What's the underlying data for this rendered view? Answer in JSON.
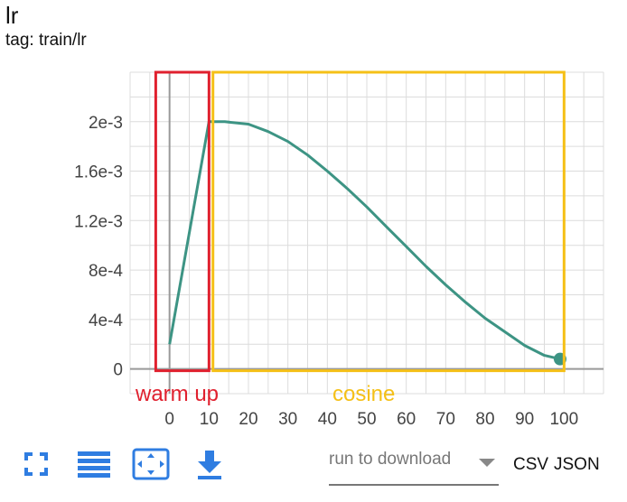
{
  "card": {
    "title": "lr",
    "tag": "tag: train/lr"
  },
  "annotations": {
    "warmup_label": "warm up",
    "warmup_color": "#e0202e",
    "cosine_label": "cosine",
    "cosine_color": "#f5c017"
  },
  "toolbar": {
    "icons": [
      "fullscreen-icon",
      "list-icon",
      "fit-domain-icon",
      "download-icon"
    ],
    "accent": "#2f7de1"
  },
  "download": {
    "placeholder": "run to download",
    "csv_label": "CSV",
    "json_label": "JSON"
  },
  "chart_data": {
    "type": "line",
    "title": "lr",
    "xlabel": "",
    "ylabel": "",
    "xlim": [
      -10,
      110
    ],
    "ylim": [
      -0.0002,
      0.0024
    ],
    "xticks": [
      0,
      10,
      20,
      30,
      40,
      50,
      60,
      70,
      80,
      90,
      100
    ],
    "xtick_labels": [
      "0",
      "10",
      "20",
      "30",
      "40",
      "50",
      "60",
      "70",
      "80",
      "90",
      "100"
    ],
    "yticks": [
      0,
      0.0004,
      0.0008,
      0.0012,
      0.0016,
      0.002
    ],
    "ytick_labels": [
      "0",
      "4e-4",
      "8e-4",
      "1.2e-3",
      "1.6e-3",
      "2e-3"
    ],
    "grid": true,
    "line_color": "#3d9484",
    "series": [
      {
        "x": [
          0,
          10,
          14,
          20,
          25,
          30,
          35,
          40,
          45,
          50,
          55,
          60,
          65,
          70,
          75,
          80,
          85,
          90,
          95,
          99
        ],
        "y": [
          0.0002,
          0.002,
          0.002,
          0.00198,
          0.00192,
          0.00184,
          0.00173,
          0.0016,
          0.00146,
          0.00131,
          0.00115,
          0.00099,
          0.00083,
          0.00068,
          0.00054,
          0.00041,
          0.0003,
          0.00019,
          0.00011,
          8e-05
        ]
      }
    ]
  }
}
